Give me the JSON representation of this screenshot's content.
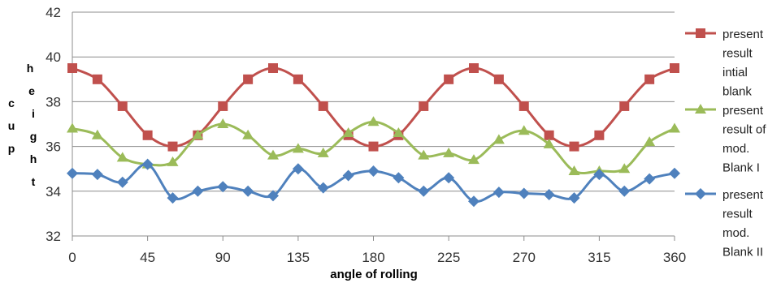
{
  "chart_data": {
    "type": "line",
    "xlabel": "angle of rolling",
    "ylabel": "cup height",
    "ylabel_letters": [
      "c",
      "u",
      "p",
      "h",
      "e",
      "i",
      "g",
      "h",
      "t"
    ],
    "xlim": [
      0,
      360
    ],
    "ylim": [
      32,
      42
    ],
    "xticks": [
      0,
      45,
      90,
      135,
      180,
      225,
      270,
      315,
      360
    ],
    "yticks": [
      32,
      34,
      36,
      38,
      40,
      42
    ],
    "grid": "horizontal",
    "legend_position": "right",
    "x": [
      0,
      15,
      30,
      45,
      60,
      75,
      90,
      105,
      120,
      135,
      150,
      165,
      180,
      195,
      210,
      225,
      240,
      255,
      270,
      285,
      300,
      315,
      330,
      345,
      360
    ],
    "series": [
      {
        "name": "present result intial blank",
        "legend_lines": [
          "present",
          "result",
          "intial",
          "blank"
        ],
        "color": "#c0504d",
        "marker": "square",
        "values": [
          39.5,
          39.0,
          37.8,
          36.5,
          36.0,
          36.5,
          37.8,
          39.0,
          39.5,
          39.0,
          37.8,
          36.5,
          36.0,
          36.5,
          37.8,
          39.0,
          39.5,
          39.0,
          37.8,
          36.5,
          36.0,
          36.5,
          37.8,
          39.0,
          39.5
        ]
      },
      {
        "name": "present result of mod. Blank I",
        "legend_lines": [
          "present",
          "result of",
          "mod.",
          "Blank I"
        ],
        "color": "#9bbb59",
        "marker": "triangle",
        "values": [
          36.8,
          36.5,
          35.5,
          35.2,
          35.3,
          36.5,
          37.0,
          36.5,
          35.6,
          35.9,
          35.7,
          36.6,
          37.1,
          36.6,
          35.6,
          35.7,
          35.4,
          36.3,
          36.7,
          36.1,
          34.9,
          34.9,
          35.0,
          36.2,
          36.8
        ]
      },
      {
        "name": "present result mod. Blank II",
        "legend_lines": [
          "present",
          "result",
          "mod.",
          "Blank II"
        ],
        "color": "#4f81bd",
        "marker": "diamond",
        "values": [
          34.8,
          34.75,
          34.4,
          35.2,
          33.7,
          34.0,
          34.2,
          34.0,
          33.8,
          35.0,
          34.15,
          34.7,
          34.9,
          34.6,
          34.0,
          34.6,
          33.55,
          33.95,
          33.9,
          33.85,
          33.7,
          34.75,
          34.0,
          34.55,
          34.8
        ]
      }
    ]
  }
}
